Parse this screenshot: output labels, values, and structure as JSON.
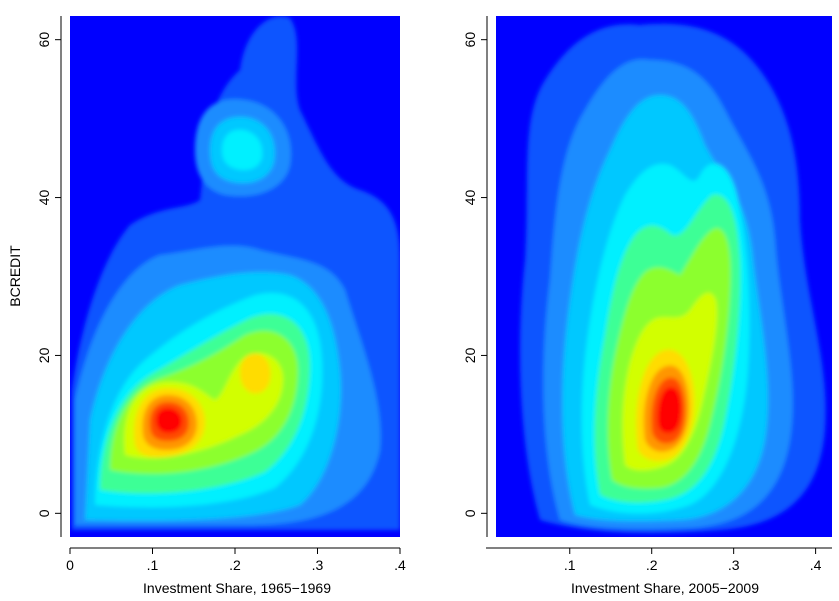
{
  "chart_data": [
    {
      "type": "heatmap",
      "subtype": "bivariate-kernel-density-contour",
      "title": "",
      "xlabel": "Investment Share, 1965−1969",
      "ylabel": "BCREDIT",
      "xlim": [
        0.0,
        0.4
      ],
      "ylim": [
        -3,
        63
      ],
      "x_ticks": [
        0,
        0.1,
        0.2,
        0.3,
        0.4
      ],
      "x_tick_labels": [
        "0",
        ".1",
        ".2",
        ".3",
        ".4"
      ],
      "y_ticks": [
        0,
        20,
        40,
        60
      ],
      "y_tick_labels": [
        "0",
        "20",
        "40",
        "60"
      ],
      "grid": false,
      "legend": "none",
      "colorscale": [
        "#0000ff",
        "#0f55ff",
        "#1e8cff",
        "#00c8ff",
        "#00f0ff",
        "#3cff96",
        "#8cff2d",
        "#d2ff00",
        "#ffdc00",
        "#ff9600",
        "#ff4b00",
        "#ff0000"
      ],
      "density_peaks": [
        {
          "x": 0.1,
          "y": 12,
          "level": "max"
        },
        {
          "x": 0.22,
          "y": 18,
          "level": "secondary"
        },
        {
          "x": 0.22,
          "y": 45,
          "level": "local"
        }
      ]
    },
    {
      "type": "heatmap",
      "subtype": "bivariate-kernel-density-contour",
      "title": "",
      "xlabel": "Investment Share, 2005−2009",
      "ylabel": "",
      "xlim": [
        0.01,
        0.42
      ],
      "ylim": [
        -3,
        63
      ],
      "x_ticks": [
        0.1,
        0.2,
        0.3,
        0.4
      ],
      "x_tick_labels": [
        ".1",
        ".2",
        ".3",
        ".4"
      ],
      "y_ticks": [
        0,
        20,
        40,
        60
      ],
      "y_tick_labels": [
        "0",
        "20",
        "40",
        "60"
      ],
      "grid": false,
      "legend": "none",
      "colorscale": [
        "#0000ff",
        "#0f55ff",
        "#1e8cff",
        "#00c8ff",
        "#00f0ff",
        "#3cff96",
        "#8cff2d",
        "#d2ff00",
        "#ffdc00",
        "#ff9600",
        "#ff4b00",
        "#ff0000"
      ],
      "density_peaks": [
        {
          "x": 0.215,
          "y": 15,
          "level": "max"
        },
        {
          "x": 0.26,
          "y": 35,
          "level": "shoulder"
        }
      ]
    }
  ]
}
